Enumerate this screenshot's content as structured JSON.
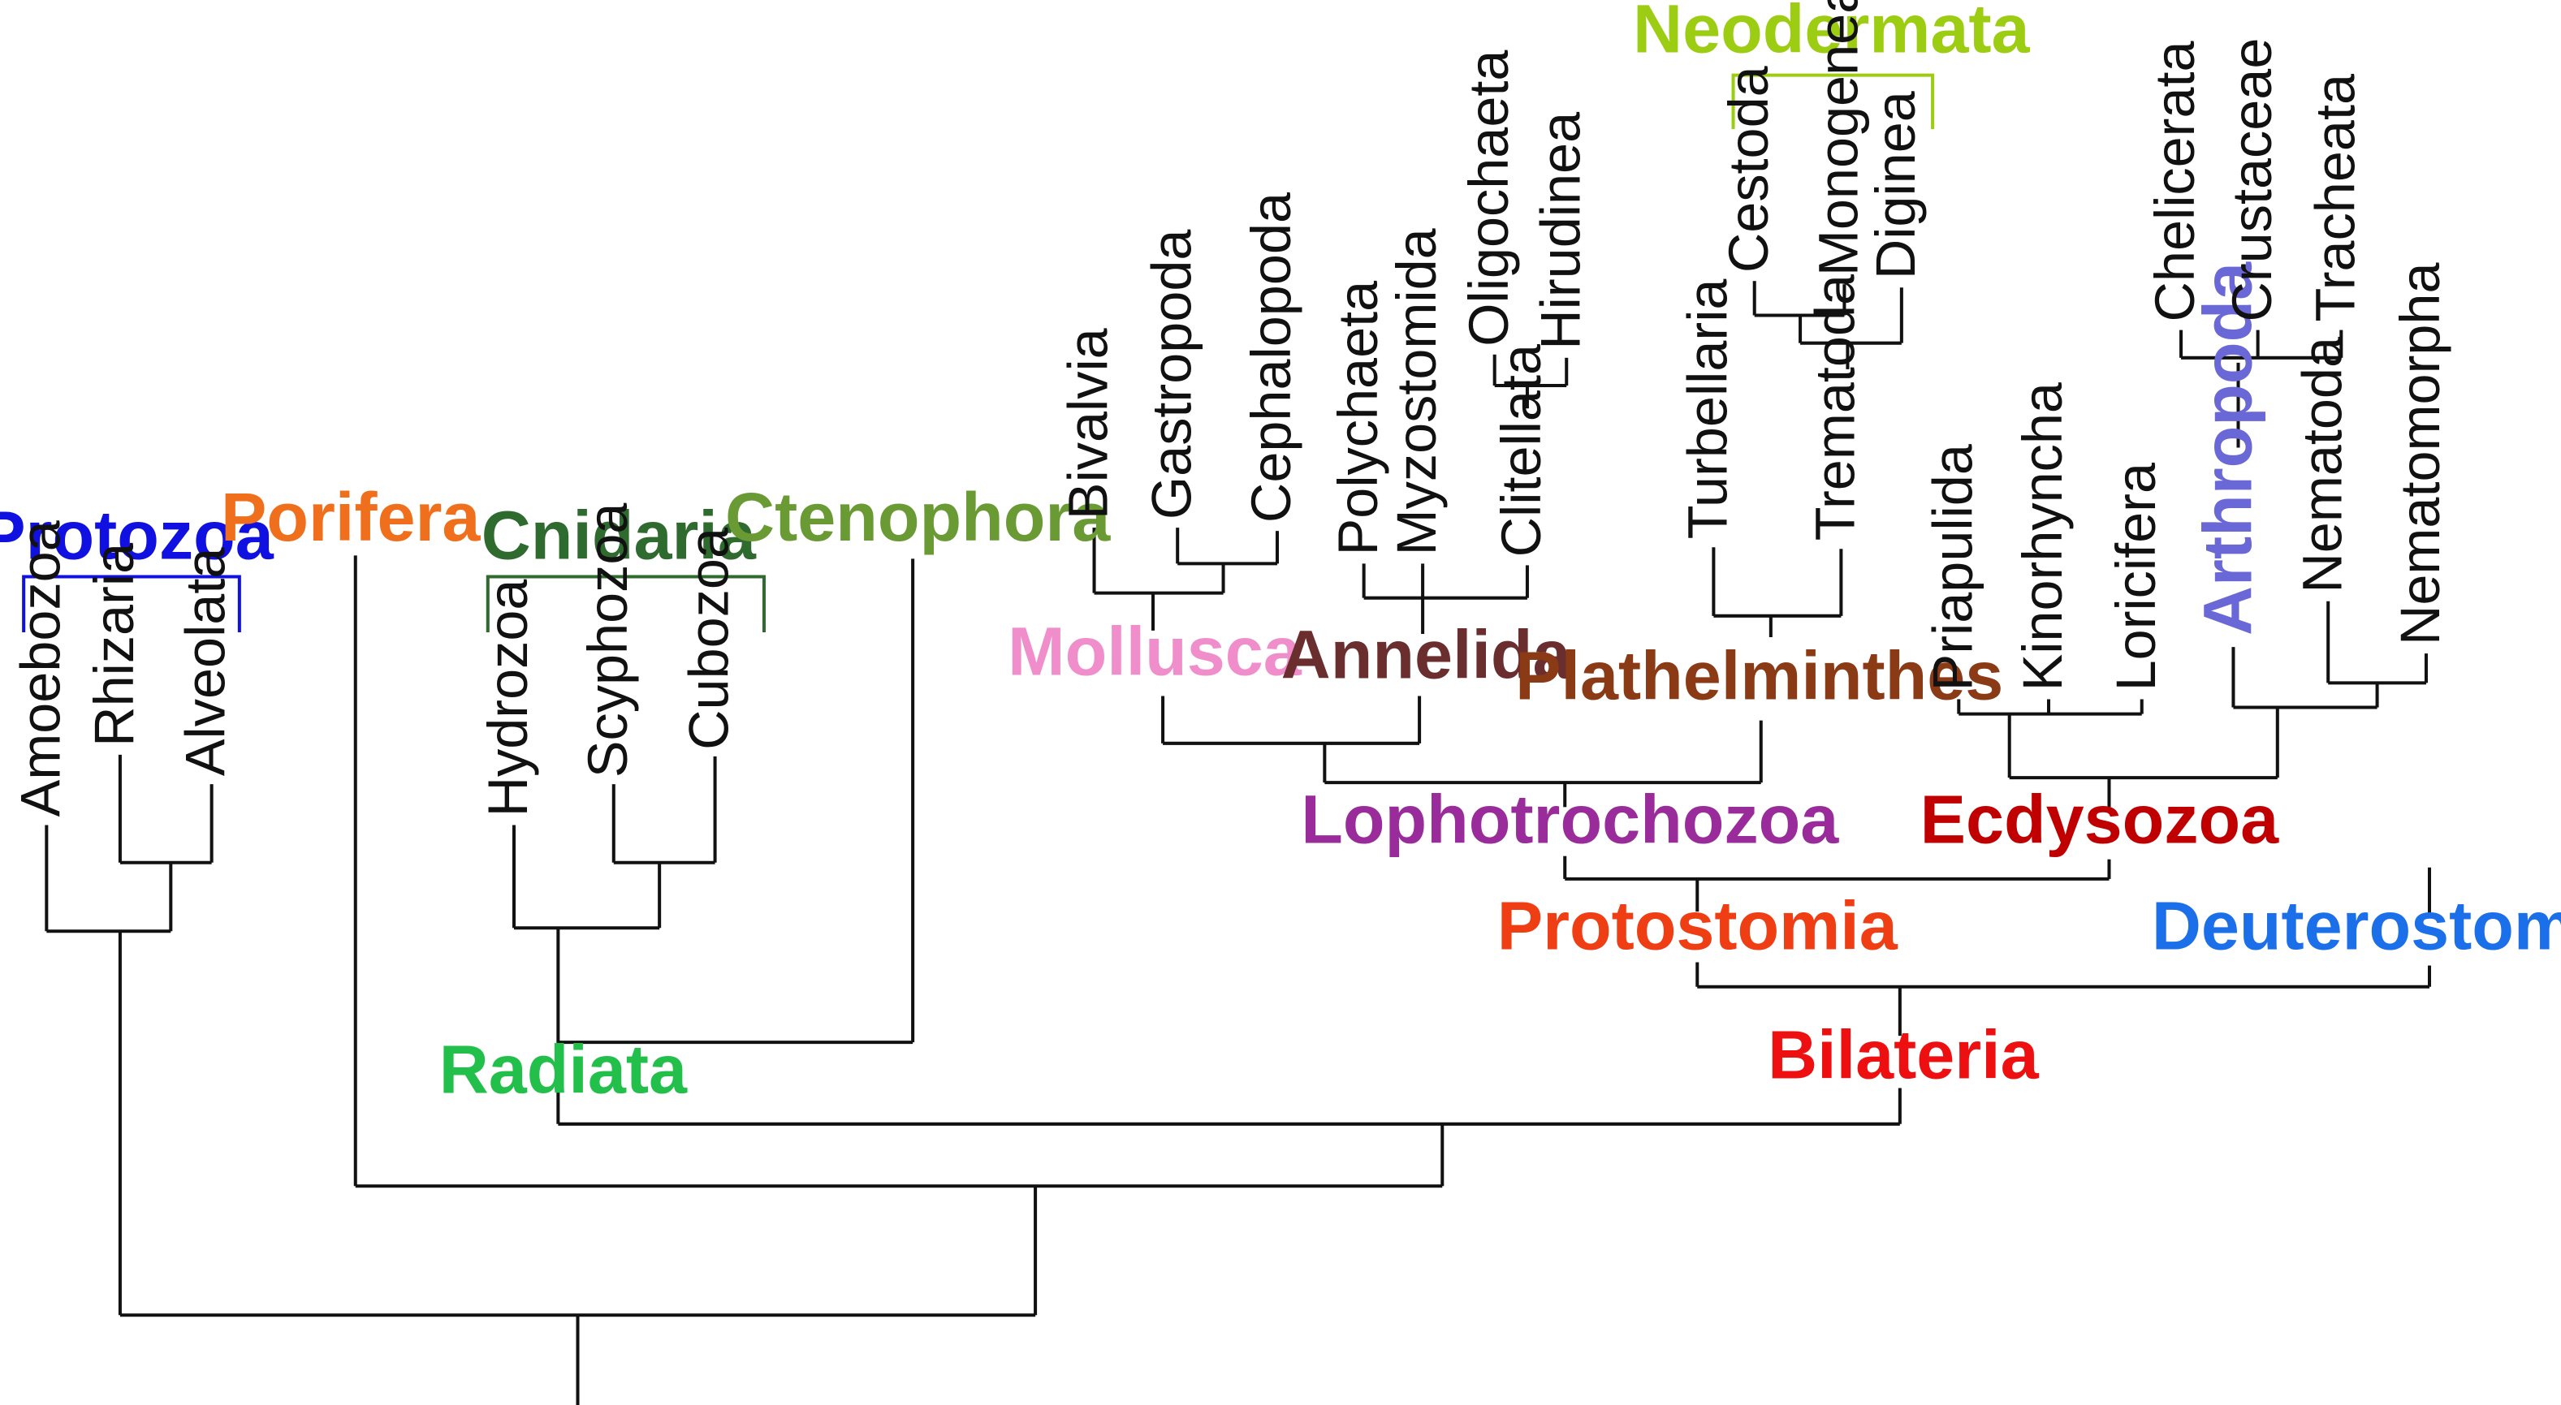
{
  "colors": {
    "line": "#111111",
    "protozoa": "#1010e0",
    "porifera": "#ef6f1c",
    "cnidaria": "#2f6a2f",
    "ctenophora": "#6a9a34",
    "radiata": "#22c04a",
    "neodermata": "#9ccd12",
    "mollusca": "#f08ecb",
    "annelida": "#6b2e2e",
    "plathelminthes": "#8b3a16",
    "lophotrochozoa": "#992c9a",
    "ecdysozoa": "#c00000",
    "arthropoda": "#6a68d6",
    "protostomia": "#ef3d14",
    "deuterostomia": "#1b6fe8",
    "bilateria": "#ee1010"
  },
  "groups": {
    "protozoa": "Protozoa",
    "porifera": "Porifera",
    "cnidaria": "Cnidaria",
    "ctenophora": "Ctenophora",
    "radiata": "Radiata",
    "neodermata": "Neodermata",
    "mollusca": "Mollusca",
    "annelida": "Annelida",
    "plathelminthes": "Plathelminthes",
    "lophotrochozoa": "Lophotrochozoa",
    "ecdysozoa": "Ecdysozoa",
    "arthropoda": "Arthropoda",
    "protostomia": "Protostomia",
    "deuterostomia": "Deuterostomia",
    "bilateria": "Bilateria"
  },
  "taxa": {
    "amoebozoa": "Amoebozoa",
    "rhizaria": "Rhizaria",
    "alveolata": "Alveolata",
    "hydrozoa": "Hydrozoa",
    "scyphozoa": "Scyphozoa",
    "cubozoa": "Cubozoa",
    "bivalvia": "Bivalvia",
    "gastropoda": "Gastropoda",
    "cephalopoda": "Cephalopoda",
    "polychaeta": "Polychaeta",
    "myzostomida": "Myzostomida",
    "clitellata": "Clitellata",
    "oligochaeta": "Oligochaeta",
    "hirudinea": "Hirudinea",
    "turbellaria": "Turbellaria",
    "trematoda": "Trematoda",
    "cestoda": "Cestoda",
    "monogenea": "Monogenea",
    "diginea": "Diginea",
    "priapulida": "Priapulida",
    "kinorhyncha": "Kinorhyncha",
    "loricifera": "Loricifera",
    "chelicerata": "Chelicerata",
    "crustaceae": "Crustaceae",
    "tracheata": "Tracheata",
    "nematoda": "Nematoda",
    "nematomorpha": "Nematomorpha"
  }
}
